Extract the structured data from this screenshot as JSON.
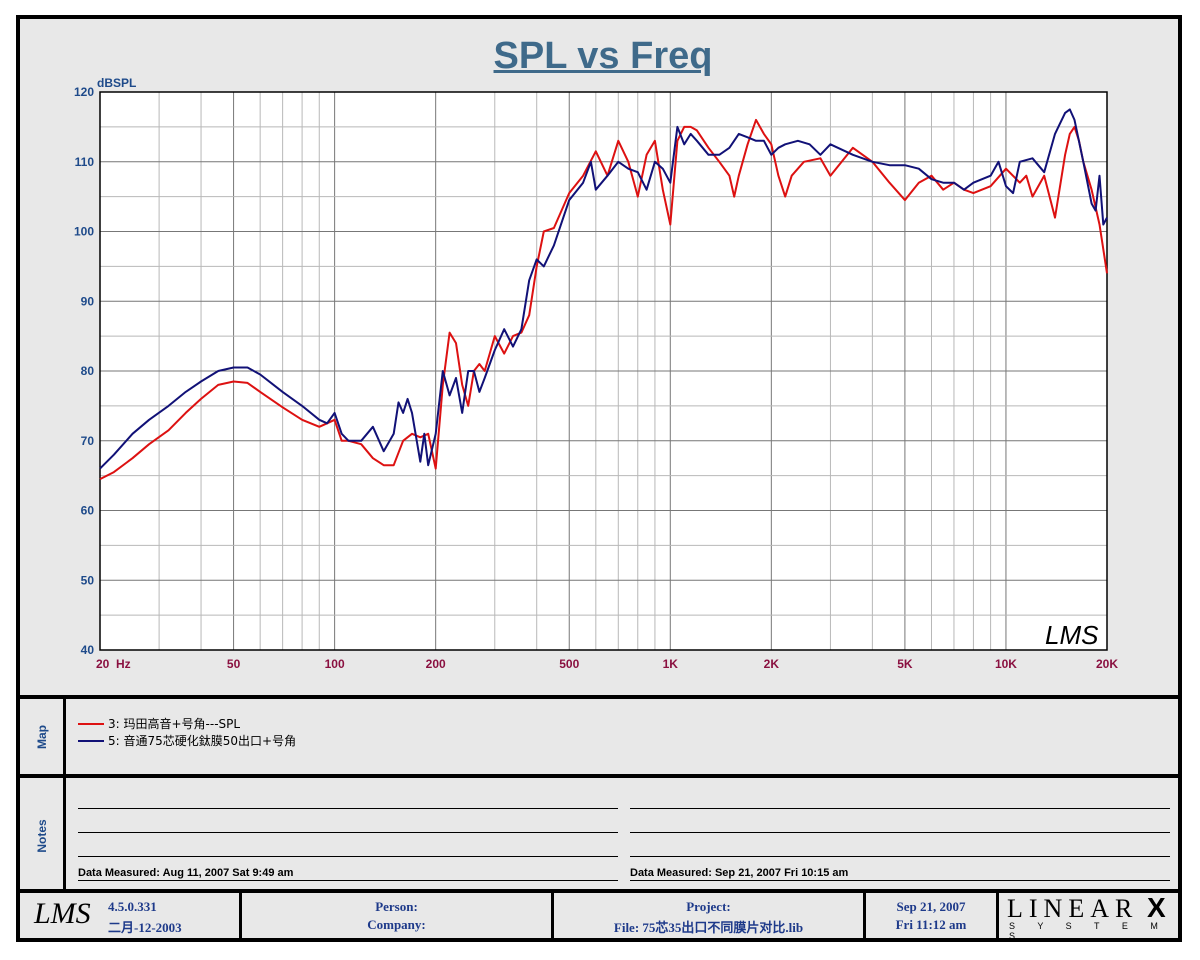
{
  "colors": {
    "red": "#dd1111",
    "blue": "#111177",
    "title": "#3f6a8a",
    "axis_y": "#1e4a8a",
    "axis_x": "#8a1040"
  },
  "chart_data": {
    "type": "line",
    "title": "SPL vs Freq",
    "ylabel": "dBSPL",
    "xlabel": "Hz",
    "xscale": "log",
    "xlim": [
      20,
      20000
    ],
    "ylim": [
      40,
      120
    ],
    "grid": true,
    "x_ticks": [
      {
        "value": 20,
        "label": "20"
      },
      {
        "value": 50,
        "label": "50"
      },
      {
        "value": 100,
        "label": "100"
      },
      {
        "value": 200,
        "label": "200"
      },
      {
        "value": 500,
        "label": "500"
      },
      {
        "value": 1000,
        "label": "1K"
      },
      {
        "value": 2000,
        "label": "2K"
      },
      {
        "value": 5000,
        "label": "5K"
      },
      {
        "value": 10000,
        "label": "10K"
      },
      {
        "value": 20000,
        "label": "20K"
      }
    ],
    "y_ticks": [
      {
        "value": 40,
        "label": "40"
      },
      {
        "value": 50,
        "label": "50"
      },
      {
        "value": 60,
        "label": "60"
      },
      {
        "value": 70,
        "label": "70"
      },
      {
        "value": 80,
        "label": "80"
      },
      {
        "value": 90,
        "label": "90"
      },
      {
        "value": 100,
        "label": "100"
      },
      {
        "value": 110,
        "label": "110"
      },
      {
        "value": 120,
        "label": "120"
      }
    ],
    "watermark": "LMS",
    "series": [
      {
        "name": "3: 玛田高音+号角---SPL",
        "color": "#dd1111",
        "points": [
          [
            20,
            64.5
          ],
          [
            22,
            65.5
          ],
          [
            25,
            67.5
          ],
          [
            28,
            69.5
          ],
          [
            32,
            71.5
          ],
          [
            36,
            74
          ],
          [
            40,
            76
          ],
          [
            45,
            78
          ],
          [
            50,
            78.5
          ],
          [
            55,
            78.3
          ],
          [
            60,
            77
          ],
          [
            70,
            74.8
          ],
          [
            80,
            73
          ],
          [
            90,
            72
          ],
          [
            95,
            72.5
          ],
          [
            100,
            73
          ],
          [
            105,
            70
          ],
          [
            110,
            70
          ],
          [
            120,
            69.5
          ],
          [
            130,
            67.5
          ],
          [
            140,
            66.5
          ],
          [
            150,
            66.5
          ],
          [
            160,
            70
          ],
          [
            170,
            71
          ],
          [
            180,
            70.5
          ],
          [
            190,
            71
          ],
          [
            200,
            66
          ],
          [
            210,
            78
          ],
          [
            220,
            85.5
          ],
          [
            230,
            84
          ],
          [
            240,
            78
          ],
          [
            250,
            75
          ],
          [
            260,
            80
          ],
          [
            270,
            81
          ],
          [
            280,
            80
          ],
          [
            300,
            85
          ],
          [
            320,
            82.5
          ],
          [
            340,
            85
          ],
          [
            360,
            85.5
          ],
          [
            380,
            88
          ],
          [
            400,
            95
          ],
          [
            420,
            100
          ],
          [
            450,
            100.5
          ],
          [
            500,
            105.5
          ],
          [
            550,
            108
          ],
          [
            600,
            111.5
          ],
          [
            650,
            108
          ],
          [
            700,
            113
          ],
          [
            750,
            110
          ],
          [
            800,
            105
          ],
          [
            850,
            111
          ],
          [
            900,
            113
          ],
          [
            950,
            106
          ],
          [
            1000,
            101
          ],
          [
            1050,
            113
          ],
          [
            1100,
            115
          ],
          [
            1150,
            115
          ],
          [
            1200,
            114.5
          ],
          [
            1300,
            112
          ],
          [
            1400,
            110
          ],
          [
            1500,
            108
          ],
          [
            1550,
            105
          ],
          [
            1600,
            108
          ],
          [
            1700,
            112.5
          ],
          [
            1800,
            116
          ],
          [
            1900,
            114
          ],
          [
            2000,
            112.5
          ],
          [
            2100,
            108
          ],
          [
            2200,
            105
          ],
          [
            2300,
            108
          ],
          [
            2500,
            110
          ],
          [
            2800,
            110.5
          ],
          [
            3000,
            108
          ],
          [
            3500,
            112
          ],
          [
            4000,
            110
          ],
          [
            4500,
            107
          ],
          [
            5000,
            104.5
          ],
          [
            5500,
            107
          ],
          [
            6000,
            108
          ],
          [
            6500,
            106
          ],
          [
            7000,
            107
          ],
          [
            7500,
            106
          ],
          [
            8000,
            105.5
          ],
          [
            9000,
            106.5
          ],
          [
            10000,
            109
          ],
          [
            11000,
            107
          ],
          [
            11500,
            108
          ],
          [
            12000,
            105
          ],
          [
            13000,
            108
          ],
          [
            14000,
            102
          ],
          [
            15000,
            111
          ],
          [
            15500,
            114
          ],
          [
            16000,
            115
          ],
          [
            16500,
            113
          ],
          [
            17000,
            110
          ],
          [
            18000,
            106
          ],
          [
            19000,
            101
          ],
          [
            20000,
            94
          ]
        ]
      },
      {
        "name": "5: 音通75芯硬化鈦膜50出口+号角",
        "color": "#111177",
        "points": [
          [
            20,
            66
          ],
          [
            22,
            68
          ],
          [
            25,
            71
          ],
          [
            28,
            73
          ],
          [
            32,
            75
          ],
          [
            36,
            77
          ],
          [
            40,
            78.5
          ],
          [
            45,
            80
          ],
          [
            50,
            80.5
          ],
          [
            55,
            80.5
          ],
          [
            60,
            79.5
          ],
          [
            70,
            77
          ],
          [
            80,
            75
          ],
          [
            90,
            73
          ],
          [
            95,
            72.5
          ],
          [
            100,
            74
          ],
          [
            105,
            71
          ],
          [
            110,
            70
          ],
          [
            120,
            70
          ],
          [
            130,
            72
          ],
          [
            140,
            68.5
          ],
          [
            150,
            71
          ],
          [
            155,
            75.5
          ],
          [
            160,
            74
          ],
          [
            165,
            76
          ],
          [
            170,
            74
          ],
          [
            180,
            67
          ],
          [
            185,
            71
          ],
          [
            190,
            66.5
          ],
          [
            200,
            71
          ],
          [
            210,
            80
          ],
          [
            220,
            76.5
          ],
          [
            230,
            79
          ],
          [
            240,
            74
          ],
          [
            250,
            80
          ],
          [
            260,
            80
          ],
          [
            270,
            77
          ],
          [
            280,
            79
          ],
          [
            300,
            83
          ],
          [
            320,
            86
          ],
          [
            340,
            83.5
          ],
          [
            360,
            86
          ],
          [
            380,
            93
          ],
          [
            400,
            96
          ],
          [
            420,
            95
          ],
          [
            450,
            98
          ],
          [
            500,
            104.5
          ],
          [
            550,
            107
          ],
          [
            580,
            110
          ],
          [
            600,
            106
          ],
          [
            650,
            108
          ],
          [
            700,
            110
          ],
          [
            750,
            109
          ],
          [
            800,
            108.5
          ],
          [
            850,
            106
          ],
          [
            900,
            110
          ],
          [
            950,
            109
          ],
          [
            1000,
            107
          ],
          [
            1050,
            115
          ],
          [
            1100,
            112.5
          ],
          [
            1150,
            114
          ],
          [
            1200,
            113
          ],
          [
            1300,
            111
          ],
          [
            1400,
            111
          ],
          [
            1500,
            112
          ],
          [
            1600,
            114
          ],
          [
            1700,
            113.5
          ],
          [
            1800,
            113
          ],
          [
            1900,
            113
          ],
          [
            2000,
            111
          ],
          [
            2100,
            112
          ],
          [
            2200,
            112.5
          ],
          [
            2400,
            113
          ],
          [
            2600,
            112.5
          ],
          [
            2800,
            111
          ],
          [
            3000,
            112.5
          ],
          [
            3500,
            111
          ],
          [
            4000,
            110
          ],
          [
            4500,
            109.5
          ],
          [
            5000,
            109.5
          ],
          [
            5500,
            109
          ],
          [
            6000,
            107.5
          ],
          [
            6500,
            107
          ],
          [
            7000,
            107
          ],
          [
            7500,
            106
          ],
          [
            8000,
            107
          ],
          [
            9000,
            108
          ],
          [
            9500,
            110
          ],
          [
            10000,
            106.5
          ],
          [
            10500,
            105.5
          ],
          [
            11000,
            110
          ],
          [
            12000,
            110.5
          ],
          [
            13000,
            108.5
          ],
          [
            14000,
            114
          ],
          [
            15000,
            117
          ],
          [
            15500,
            117.5
          ],
          [
            16000,
            116
          ],
          [
            17000,
            110
          ],
          [
            18000,
            104
          ],
          [
            18500,
            103
          ],
          [
            19000,
            108
          ],
          [
            19500,
            101
          ],
          [
            20000,
            102
          ]
        ]
      }
    ]
  },
  "legend_panel": {
    "label": "Map",
    "items": [
      "3: 玛田高音+号角---SPL",
      "5: 音通75芯硬化鈦膜50出口+号角"
    ]
  },
  "notes_panel": {
    "label": "Notes",
    "left_measured": "Data Measured: Aug 11, 2007  Sat  9:49 am",
    "right_measured": "Data Measured: Sep 21, 2007  Fri 10:15 am"
  },
  "footer": {
    "version": "4.5.0.331",
    "build_date": "二月-12-2003",
    "person_label": "Person:",
    "company_label": "Company:",
    "project_label": "Project:",
    "file_label": "File: 75芯35出口不同膜片对比.lib",
    "date": "Sep 21, 2007",
    "time": "Fri 11:12 am",
    "brand_top": "LINEAR",
    "brand_x": "X",
    "brand_bottom": "S Y S T E M S",
    "logo_text": "LMS"
  }
}
